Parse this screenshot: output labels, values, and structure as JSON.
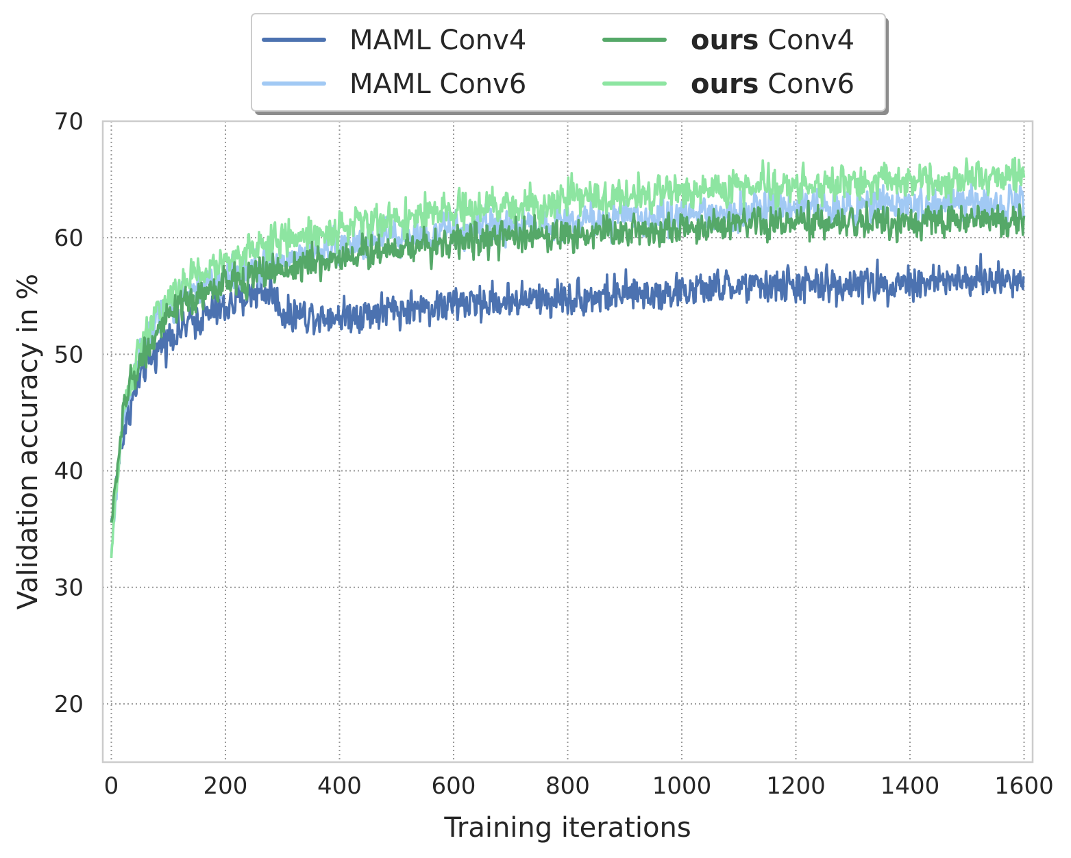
{
  "chart_data": {
    "type": "line",
    "xlabel": "Training iterations",
    "ylabel": "Validation accuracy in %",
    "xlim": [
      -15,
      1615
    ],
    "ylim": [
      15,
      70
    ],
    "xticks": [
      0,
      200,
      400,
      600,
      800,
      1000,
      1200,
      1400,
      1600
    ],
    "yticks": [
      20,
      30,
      40,
      50,
      60,
      70
    ],
    "xtick_labels": [
      "0",
      "200",
      "400",
      "600",
      "800",
      "1000",
      "1200",
      "1400",
      "1600"
    ],
    "ytick_labels": [
      "20",
      "30",
      "40",
      "50",
      "60",
      "70"
    ],
    "grid": true,
    "legend_placement": "top-center outside, 2 columns",
    "series": [
      {
        "name": "MAML Conv4",
        "name_bold": "",
        "name_rest": "MAML Conv4",
        "color": "#4c72b0",
        "noise": 1.3,
        "x": [
          0,
          10,
          20,
          30,
          50,
          75,
          100,
          150,
          200,
          250,
          280,
          300,
          350,
          400,
          500,
          600,
          700,
          800,
          900,
          1000,
          1100,
          1200,
          1300,
          1400,
          1500,
          1600
        ],
        "y": [
          35.5,
          39.5,
          43,
          45,
          48,
          50,
          51.5,
          53,
          54,
          55.3,
          55.5,
          53.5,
          53.4,
          53.3,
          53.8,
          54.3,
          54.6,
          54.9,
          55.1,
          55.4,
          55.8,
          55.9,
          56.0,
          56.2,
          56.3,
          56.4
        ]
      },
      {
        "name": "MAML Conv6",
        "name_bold": "",
        "name_rest": "MAML Conv6",
        "color": "#a1c9f4",
        "noise": 1.3,
        "x": [
          0,
          10,
          20,
          30,
          50,
          75,
          100,
          150,
          200,
          250,
          300,
          400,
          500,
          600,
          700,
          800,
          900,
          1000,
          1100,
          1200,
          1300,
          1400,
          1500,
          1600
        ],
        "y": [
          32.5,
          39,
          44,
          47,
          50,
          52.5,
          54,
          55.5,
          56.5,
          57.3,
          58,
          59.2,
          60.0,
          60.6,
          61.0,
          61.4,
          61.7,
          62.0,
          62.3,
          62.5,
          62.7,
          62.8,
          62.9,
          63.0
        ]
      },
      {
        "name": "ours Conv4",
        "name_bold": "ours",
        "name_rest": " Conv4",
        "color": "#55a868",
        "noise": 1.2,
        "x": [
          0,
          10,
          20,
          30,
          50,
          75,
          100,
          150,
          200,
          250,
          300,
          400,
          500,
          600,
          700,
          800,
          900,
          1000,
          1100,
          1200,
          1300,
          1400,
          1500,
          1600
        ],
        "y": [
          35.5,
          40,
          44.5,
          47,
          49.5,
          51.5,
          53,
          55,
          56,
          56.8,
          57.3,
          58.3,
          59.2,
          59.7,
          60.0,
          60.3,
          60.6,
          60.8,
          61.0,
          61.2,
          61.3,
          61.4,
          61.5,
          61.6
        ]
      },
      {
        "name": "ours Conv6",
        "name_bold": "ours",
        "name_rest": " Conv6",
        "color": "#8de5a1",
        "noise": 1.3,
        "x": [
          0,
          10,
          20,
          30,
          50,
          75,
          100,
          150,
          200,
          250,
          300,
          400,
          500,
          600,
          700,
          800,
          900,
          1000,
          1100,
          1200,
          1300,
          1400,
          1500,
          1600
        ],
        "y": [
          32.5,
          39,
          44,
          47,
          50.5,
          53,
          54.8,
          56.8,
          58,
          59,
          59.8,
          60.8,
          61.6,
          62.2,
          62.7,
          63.2,
          63.6,
          64.0,
          64.3,
          64.5,
          64.7,
          64.9,
          65.0,
          65.2
        ]
      }
    ]
  }
}
